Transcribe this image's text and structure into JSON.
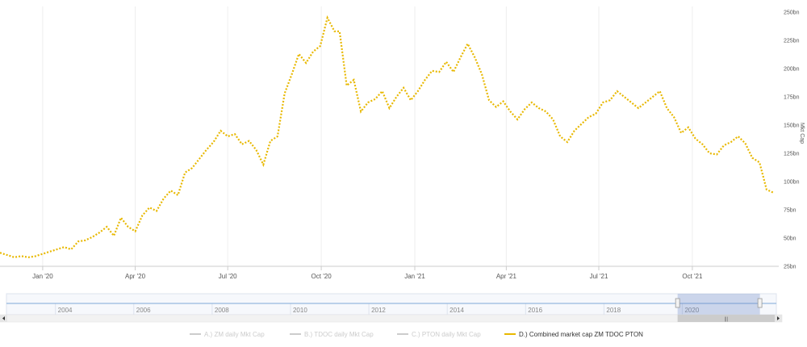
{
  "chart_data": {
    "type": "line",
    "title": "",
    "xlabel": "",
    "ylabel": "Mkt Cap",
    "ylim": [
      25,
      255
    ],
    "y_unit": "bn",
    "xlim": [
      "2019-11-20",
      "2021-12-25"
    ],
    "y_ticks": [
      "25bn",
      "50bn",
      "75bn",
      "100bn",
      "125bn",
      "150bn",
      "175bn",
      "200bn",
      "225bn",
      "250bn"
    ],
    "x_ticks": [
      {
        "label": "Jan '20",
        "date": "2020-01-01"
      },
      {
        "label": "Apr '20",
        "date": "2020-04-01"
      },
      {
        "label": "Jul '20",
        "date": "2020-07-01"
      },
      {
        "label": "Oct '20",
        "date": "2020-10-01"
      },
      {
        "label": "Jan '21",
        "date": "2021-01-01"
      },
      {
        "label": "Apr '21",
        "date": "2021-04-01"
      },
      {
        "label": "Jul '21",
        "date": "2021-07-01"
      },
      {
        "label": "Oct '21",
        "date": "2021-10-01"
      }
    ],
    "grid": {
      "vertical": true,
      "horizontal": false
    },
    "legend_position": "bottom",
    "series_color": "#e8b800",
    "series": [
      {
        "name": "D.) Combined market cap ZM TDOC PTON",
        "visible": true,
        "x": [
          "2019-11-20",
          "2019-11-27",
          "2019-12-04",
          "2019-12-11",
          "2019-12-18",
          "2019-12-25",
          "2020-01-01",
          "2020-01-08",
          "2020-01-15",
          "2020-01-22",
          "2020-01-29",
          "2020-02-05",
          "2020-02-12",
          "2020-02-19",
          "2020-02-26",
          "2020-03-04",
          "2020-03-11",
          "2020-03-18",
          "2020-03-25",
          "2020-04-01",
          "2020-04-08",
          "2020-04-15",
          "2020-04-22",
          "2020-04-29",
          "2020-05-06",
          "2020-05-13",
          "2020-05-20",
          "2020-05-27",
          "2020-06-03",
          "2020-06-10",
          "2020-06-17",
          "2020-06-24",
          "2020-07-01",
          "2020-07-08",
          "2020-07-15",
          "2020-07-22",
          "2020-07-29",
          "2020-08-05",
          "2020-08-12",
          "2020-08-19",
          "2020-08-26",
          "2020-09-02",
          "2020-09-09",
          "2020-09-16",
          "2020-09-23",
          "2020-09-30",
          "2020-10-07",
          "2020-10-14",
          "2020-10-19",
          "2020-10-26",
          "2020-11-02",
          "2020-11-09",
          "2020-11-16",
          "2020-11-23",
          "2020-11-30",
          "2020-12-07",
          "2020-12-14",
          "2020-12-21",
          "2020-12-28",
          "2021-01-04",
          "2021-01-11",
          "2021-01-18",
          "2021-01-25",
          "2021-02-01",
          "2021-02-08",
          "2021-02-15",
          "2021-02-22",
          "2021-03-01",
          "2021-03-08",
          "2021-03-15",
          "2021-03-22",
          "2021-03-29",
          "2021-04-05",
          "2021-04-12",
          "2021-04-19",
          "2021-04-26",
          "2021-05-03",
          "2021-05-10",
          "2021-05-17",
          "2021-05-24",
          "2021-05-31",
          "2021-06-07",
          "2021-06-14",
          "2021-06-21",
          "2021-06-28",
          "2021-07-05",
          "2021-07-12",
          "2021-07-19",
          "2021-07-26",
          "2021-08-02",
          "2021-08-09",
          "2021-08-16",
          "2021-08-23",
          "2021-08-30",
          "2021-09-06",
          "2021-09-13",
          "2021-09-20",
          "2021-09-27",
          "2021-10-04",
          "2021-10-11",
          "2021-10-18",
          "2021-10-25",
          "2021-11-01",
          "2021-11-08",
          "2021-11-15",
          "2021-11-22",
          "2021-11-29",
          "2021-12-06",
          "2021-12-13",
          "2021-12-20"
        ],
        "y": [
          37,
          35,
          33,
          34,
          33,
          34,
          36,
          38,
          40,
          42,
          40,
          47,
          48,
          51,
          55,
          60,
          52,
          68,
          60,
          56,
          70,
          77,
          74,
          85,
          92,
          88,
          108,
          112,
          120,
          128,
          135,
          145,
          140,
          142,
          133,
          136,
          128,
          115,
          136,
          140,
          178,
          195,
          213,
          205,
          215,
          220,
          245,
          233,
          233,
          185,
          190,
          162,
          170,
          173,
          180,
          165,
          175,
          183,
          172,
          180,
          190,
          198,
          197,
          206,
          197,
          210,
          222,
          210,
          195,
          172,
          166,
          171,
          162,
          155,
          164,
          170,
          165,
          162,
          155,
          140,
          135,
          145,
          151,
          157,
          160,
          170,
          172,
          180,
          175,
          170,
          165,
          170,
          175,
          180,
          165,
          157,
          143,
          148,
          138,
          133,
          125,
          124,
          132,
          135,
          140,
          134,
          121,
          117,
          93,
          90
        ]
      },
      {
        "name": "A.) ZM daily Mkt Cap",
        "visible": false
      },
      {
        "name": "B.) TDOC daily Mkt Cap",
        "visible": false
      },
      {
        "name": "C.) PTON daily Mkt Cap",
        "visible": false
      }
    ]
  },
  "navigator": {
    "years": [
      "2004",
      "2006",
      "2008",
      "2010",
      "2012",
      "2014",
      "2016",
      "2018",
      "2020"
    ],
    "range_start_year": 2002.75,
    "range_end_year": 2022.4,
    "selected_from_year": 2019.88,
    "selected_to_year": 2021.98
  },
  "legend": {
    "items": [
      {
        "label": "A.) ZM daily Mkt Cap",
        "active": false
      },
      {
        "label": "B.) TDOC daily Mkt Cap",
        "active": false
      },
      {
        "label": "C.) PTON daily Mkt Cap",
        "active": false
      },
      {
        "label": "D.) Combined market cap ZM TDOC PTON",
        "active": true
      }
    ],
    "active_color": "#e8b800",
    "inactive_color": "#cccccc"
  }
}
